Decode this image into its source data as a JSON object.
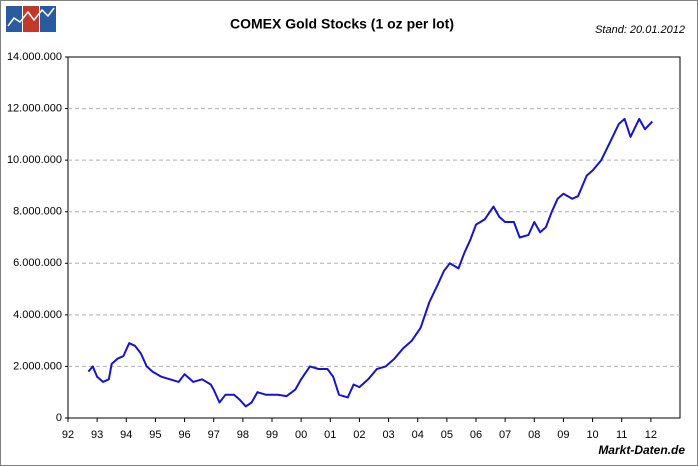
{
  "chart_data": {
    "type": "line",
    "title": "COMEX Gold Stocks (1 oz per lot)",
    "subtitle": "Stand: 20.01.2012",
    "source": "Markt-Daten.de",
    "color": "#1414d2",
    "grid": true,
    "x": [
      1992.7,
      1992.85,
      1993.0,
      1993.2,
      1993.4,
      1993.5,
      1993.7,
      1993.9,
      1994.1,
      1994.3,
      1994.5,
      1994.7,
      1994.9,
      1995.2,
      1995.5,
      1995.8,
      1996.0,
      1996.3,
      1996.6,
      1996.9,
      1997.0,
      1997.2,
      1997.4,
      1997.7,
      1997.9,
      1998.1,
      1998.3,
      1998.5,
      1998.8,
      1999.2,
      1999.5,
      1999.8,
      2000.0,
      2000.3,
      2000.6,
      2000.9,
      2001.1,
      2001.3,
      2001.6,
      2001.8,
      2002.0,
      2002.3,
      2002.6,
      2002.9,
      2003.2,
      2003.5,
      2003.8,
      2004.1,
      2004.4,
      2004.7,
      2004.9,
      2005.1,
      2005.4,
      2005.6,
      2005.8,
      2006.0,
      2006.3,
      2006.6,
      2006.8,
      2007.0,
      2007.3,
      2007.5,
      2007.8,
      2008.0,
      2008.2,
      2008.4,
      2008.6,
      2008.8,
      2009.0,
      2009.3,
      2009.5,
      2009.8,
      2010.0,
      2010.3,
      2010.6,
      2010.9,
      2011.1,
      2011.3,
      2011.6,
      2011.8,
      2012.05
    ],
    "values": [
      1800000,
      2000000,
      1600000,
      1400000,
      1500000,
      2100000,
      2300000,
      2400000,
      2900000,
      2800000,
      2500000,
      2000000,
      1800000,
      1600000,
      1500000,
      1400000,
      1700000,
      1400000,
      1500000,
      1300000,
      1100000,
      600000,
      900000,
      900000,
      700000,
      450000,
      600000,
      1000000,
      900000,
      900000,
      850000,
      1100000,
      1500000,
      2000000,
      1900000,
      1900000,
      1600000,
      900000,
      800000,
      1300000,
      1200000,
      1500000,
      1900000,
      2000000,
      2300000,
      2700000,
      3000000,
      3500000,
      4500000,
      5200000,
      5700000,
      6000000,
      5800000,
      6400000,
      6900000,
      7500000,
      7700000,
      8200000,
      7800000,
      7600000,
      7600000,
      7000000,
      7100000,
      7600000,
      7200000,
      7400000,
      8000000,
      8500000,
      8700000,
      8500000,
      8600000,
      9400000,
      9600000,
      10000000,
      10700000,
      11400000,
      11600000,
      10900000,
      11600000,
      11200000,
      11500000
    ],
    "xlim": [
      1992,
      2013
    ],
    "xticks": [
      {
        "value": 1992,
        "label": "92"
      },
      {
        "value": 1993,
        "label": "93"
      },
      {
        "value": 1994,
        "label": "94"
      },
      {
        "value": 1995,
        "label": "95"
      },
      {
        "value": 1996,
        "label": "96"
      },
      {
        "value": 1997,
        "label": "97"
      },
      {
        "value": 1998,
        "label": "98"
      },
      {
        "value": 1999,
        "label": "99"
      },
      {
        "value": 2000,
        "label": "00"
      },
      {
        "value": 2001,
        "label": "01"
      },
      {
        "value": 2002,
        "label": "02"
      },
      {
        "value": 2003,
        "label": "03"
      },
      {
        "value": 2004,
        "label": "04"
      },
      {
        "value": 2005,
        "label": "05"
      },
      {
        "value": 2006,
        "label": "06"
      },
      {
        "value": 2007,
        "label": "07"
      },
      {
        "value": 2008,
        "label": "08"
      },
      {
        "value": 2009,
        "label": "09"
      },
      {
        "value": 2010,
        "label": "10"
      },
      {
        "value": 2011,
        "label": "11"
      },
      {
        "value": 2012,
        "label": "12"
      }
    ],
    "ylim": [
      0,
      14000000
    ],
    "yticks": [
      0,
      {
        "value": 2000000,
        "label": "2.000.000"
      },
      {
        "value": 4000000,
        "label": "4.000.000"
      },
      {
        "value": 6000000,
        "label": "6.000.000"
      },
      {
        "value": 8000000,
        "label": "8.000.000"
      },
      {
        "value": 10000000,
        "label": "10.000.000"
      },
      {
        "value": 12000000,
        "label": "12.000.000"
      },
      {
        "value": 14000000,
        "label": "14.000.000"
      }
    ]
  }
}
